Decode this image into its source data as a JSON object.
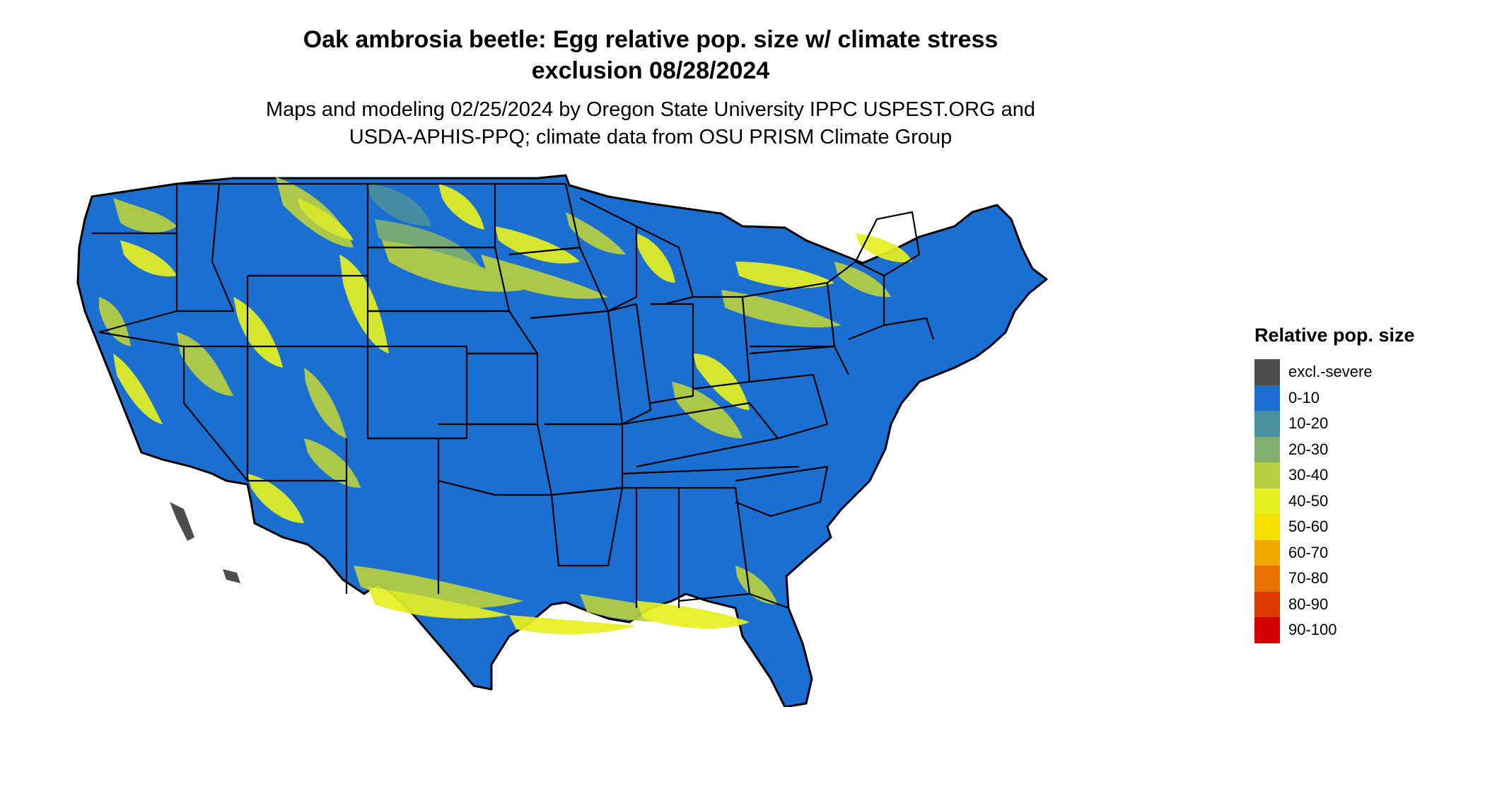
{
  "title": {
    "line1": "Oak ambrosia beetle: Egg relative pop. size w/ climate stress",
    "line2": "exclusion 08/28/2024"
  },
  "subtitle": {
    "line1": "Maps and modeling 02/25/2024 by Oregon State University IPPC USPEST.ORG and",
    "line2": "USDA-APHIS-PPQ; climate data from OSU PRISM Climate Group"
  },
  "legend": {
    "title": "Relative pop. size",
    "items": [
      {
        "label": "excl.-severe",
        "color": "#4d4d4d"
      },
      {
        "label": "0-10",
        "color": "#1a6fd0"
      },
      {
        "label": "10-20",
        "color": "#4a90a0"
      },
      {
        "label": "20-30",
        "color": "#7fb070"
      },
      {
        "label": "30-40",
        "color": "#b8d040"
      },
      {
        "label": "40-50",
        "color": "#e6f020"
      },
      {
        "label": "50-60",
        "color": "#f5e000"
      },
      {
        "label": "60-70",
        "color": "#f0a800"
      },
      {
        "label": "70-80",
        "color": "#e87000"
      },
      {
        "label": "80-90",
        "color": "#dc3800"
      },
      {
        "label": "90-100",
        "color": "#d40000"
      }
    ]
  },
  "map": {
    "base_color": "#1a6fd0",
    "border_color": "#000000"
  }
}
